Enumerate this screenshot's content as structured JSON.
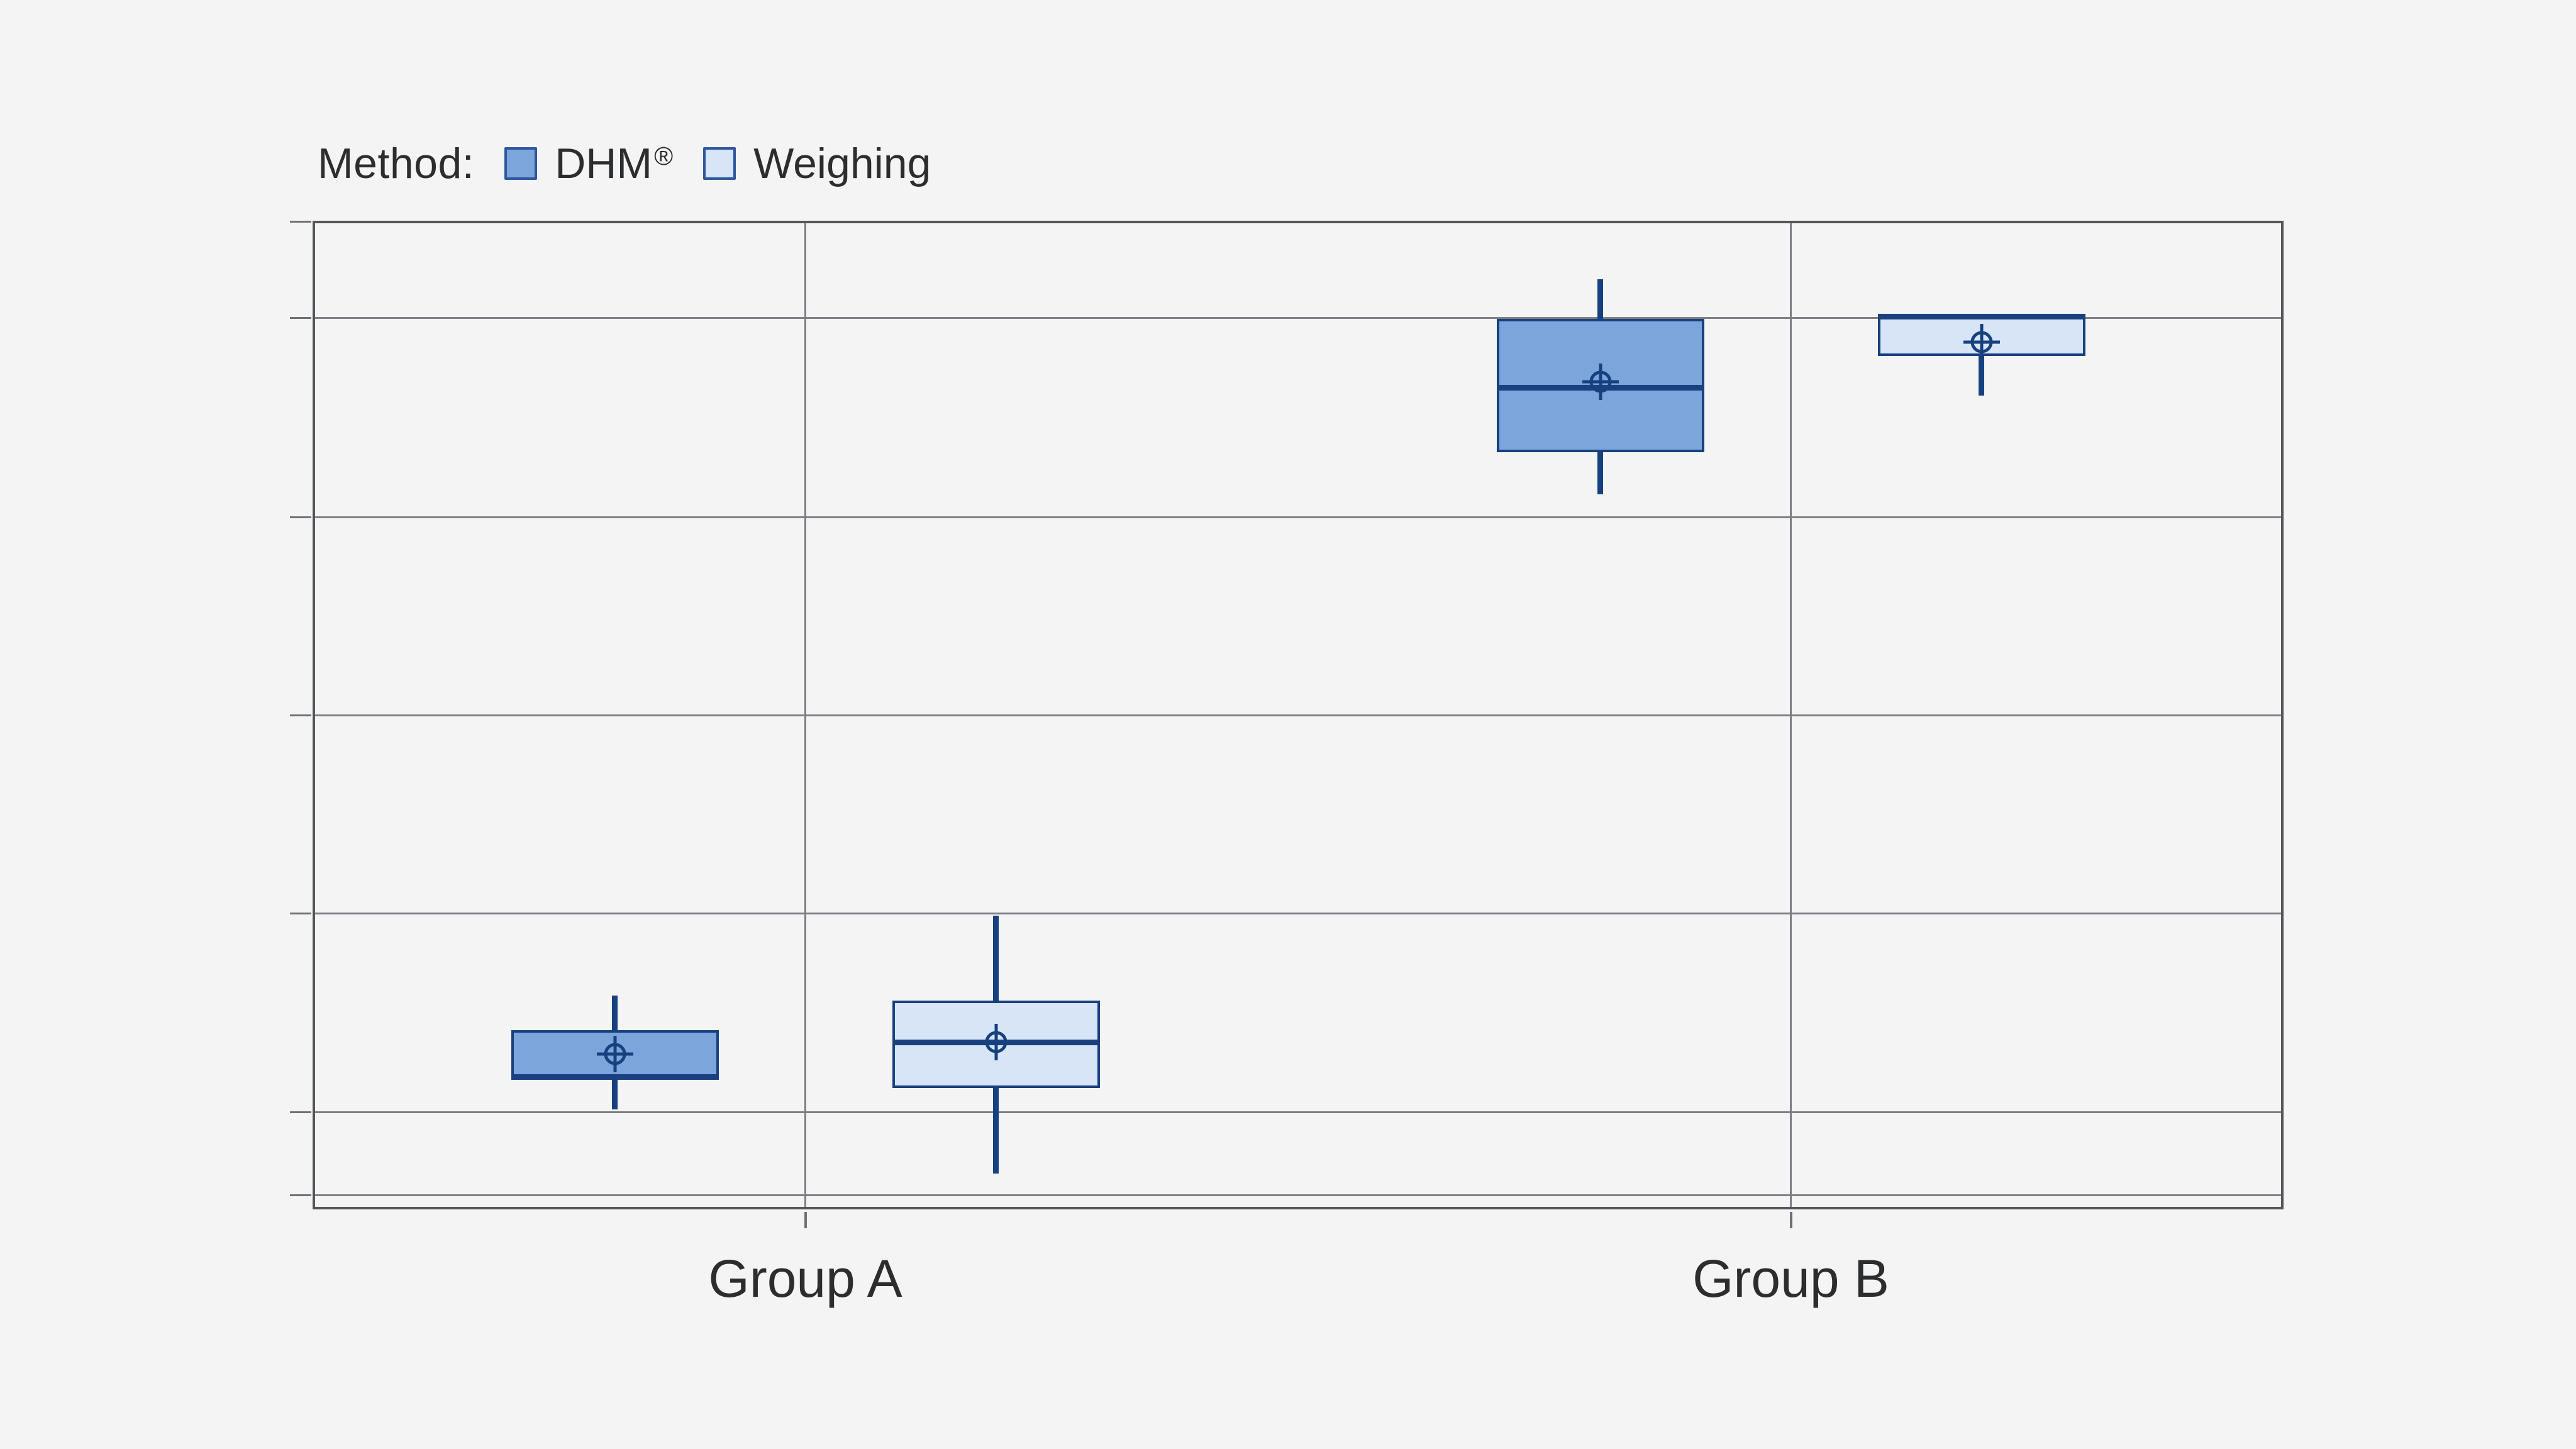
{
  "page": {
    "background_color": "#f5f4f5",
    "plot_border_color": "#53575a",
    "gridline_color": "#7c8084",
    "text_color": "#2b2d2f",
    "accent_navy": "#17407f"
  },
  "legend": {
    "title": "Method:"
  },
  "chart_data": {
    "type": "grouped-box",
    "title": "",
    "legend_position": "top-left",
    "grid": "on",
    "categories": [
      "Group A",
      "Group B"
    ],
    "x_axis": {
      "category_positions_pct": [
        25,
        75
      ],
      "vertical_gridlines_at_categories": true,
      "tick_labels": [
        "Group A",
        "Group B"
      ]
    },
    "y_axis": {
      "tick_labels_visible": false,
      "unit": "percent of plot height from bottom (axis is unlabeled in source image)",
      "range": [
        0,
        100
      ],
      "gridlines_pct": [
        90.2,
        70.0,
        50.0,
        29.9,
        9.8,
        1.4
      ],
      "left_ticks_pct": [
        100,
        90.2,
        70.0,
        50.0,
        29.9,
        9.8,
        1.4
      ]
    },
    "series": [
      {
        "name": "DHM®",
        "fill": "#7ba5db",
        "stroke": "#17407f",
        "boxes": [
          {
            "category": "Group A",
            "whisker_low": 10.1,
            "q1": 13.4,
            "median": 13.4,
            "mean": 15.7,
            "q3": 18.1,
            "whisker_high": 21.6
          },
          {
            "category": "Group B",
            "whisker_low": 72.3,
            "q1": 76.6,
            "median": 83.1,
            "mean": 83.7,
            "q3": 90.1,
            "whisker_high": 94.1
          }
        ]
      },
      {
        "name": "Weighing",
        "fill": "#d7e5f6",
        "stroke": "#17407f",
        "boxes": [
          {
            "category": "Group A",
            "whisker_low": 3.6,
            "q1": 12.3,
            "median": 16.9,
            "mean": 16.9,
            "q3": 21.1,
            "whisker_high": 29.7
          },
          {
            "category": "Group B",
            "whisker_low": 82.3,
            "q1": 86.3,
            "median": 90.3,
            "mean": 87.7,
            "q3": 90.3,
            "whisker_high": 90.3
          }
        ]
      }
    ],
    "marker": {
      "shape": "crosshair-circle",
      "meaning": "mean"
    }
  }
}
